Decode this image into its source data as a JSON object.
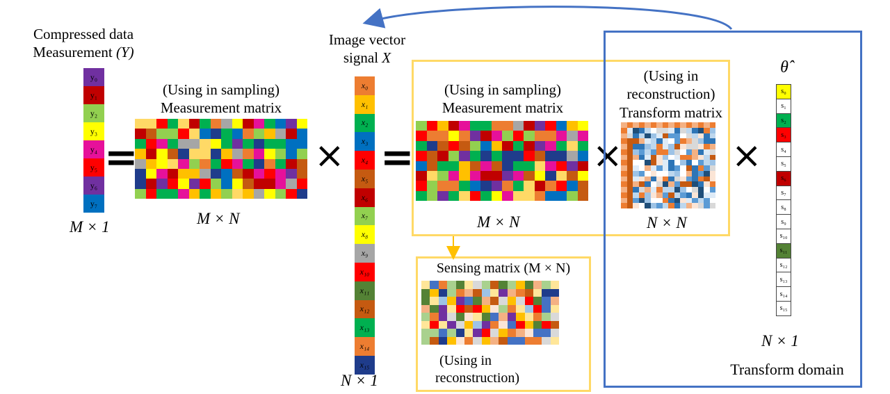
{
  "y_vector": {
    "title_line1": "Compressed data",
    "title_line2_prefix": "Measurement",
    "title_line2_math": "(Y)",
    "dim": "M × 1",
    "cells": [
      {
        "label": "y₀",
        "color": "#7030a0"
      },
      {
        "label": "y₁",
        "color": "#c00000"
      },
      {
        "label": "y₂",
        "color": "#92d050"
      },
      {
        "label": "y₃",
        "color": "#ffff00"
      },
      {
        "label": "y₄",
        "color": "#e6119a"
      },
      {
        "label": "y₅",
        "color": "#ff0000"
      },
      {
        "label": "y₆",
        "color": "#7030a0"
      },
      {
        "label": "y₇",
        "color": "#0070c0"
      }
    ]
  },
  "measurement_matrix_1": {
    "note": "(Using in sampling)",
    "title": "Measurement matrix",
    "dim": "M × N"
  },
  "x_vector": {
    "title_line1": "Image vector",
    "title_line2_prefix": "signal",
    "title_line2_math": "X",
    "dim": "N × 1",
    "cells": [
      {
        "label": "x₀",
        "color": "#ed7d31"
      },
      {
        "label": "x₁",
        "color": "#ffc000"
      },
      {
        "label": "x₂",
        "color": "#00b050"
      },
      {
        "label": "x₃",
        "color": "#0070c0"
      },
      {
        "label": "x₄",
        "color": "#ff0000"
      },
      {
        "label": "x₅",
        "color": "#c55a11"
      },
      {
        "label": "x₆",
        "color": "#c00000"
      },
      {
        "label": "x₇",
        "color": "#92d050"
      },
      {
        "label": "x₈",
        "color": "#ffff00"
      },
      {
        "label": "x₉",
        "color": "#a6a6a6"
      },
      {
        "label": "x₁₀",
        "color": "#ff0000"
      },
      {
        "label": "x₁₁",
        "color": "#548235"
      },
      {
        "label": "x₁₂",
        "color": "#c55a11"
      },
      {
        "label": "x₁₃",
        "color": "#00b050"
      },
      {
        "label": "x₁₄",
        "color": "#ed7d31"
      },
      {
        "label": "x₁₅",
        "color": "#1f3c8b"
      }
    ]
  },
  "measurement_matrix_2": {
    "note": "(Using in sampling)",
    "title": "Measurement matrix",
    "dim": "M × N"
  },
  "transform_matrix": {
    "note_line1": "(Using in",
    "note_line2": "reconstruction)",
    "title": "Transform matrix",
    "dim": "N × N"
  },
  "theta_vector": {
    "title": "θ̂",
    "dim": "N × 1",
    "domain_label": "Transform domain",
    "cells": [
      {
        "label": "s₀",
        "color": "#ffff00"
      },
      {
        "label": "s₁",
        "color": "#ffffff"
      },
      {
        "label": "s₂",
        "color": "#00b050"
      },
      {
        "label": "s₃",
        "color": "#ff0000"
      },
      {
        "label": "s₄",
        "color": "#ffffff"
      },
      {
        "label": "s₅",
        "color": "#ffffff"
      },
      {
        "label": "s₆",
        "color": "#c00000"
      },
      {
        "label": "s₇",
        "color": "#ffffff"
      },
      {
        "label": "s₈",
        "color": "#ffffff"
      },
      {
        "label": "s₉",
        "color": "#ffffff"
      },
      {
        "label": "s₁₀",
        "color": "#ffffff"
      },
      {
        "label": "s₁₁",
        "color": "#548235"
      },
      {
        "label": "s₁₂",
        "color": "#ffffff"
      },
      {
        "label": "s₁₃",
        "color": "#ffffff"
      },
      {
        "label": "s₁₄",
        "color": "#ffffff"
      },
      {
        "label": "s₁₅",
        "color": "#ffffff"
      }
    ]
  },
  "sensing_matrix": {
    "title": "Sensing matrix (M × N)",
    "note_line1": "(Using in",
    "note_line2": "reconstruction)"
  },
  "operators": {
    "equals": "=",
    "times": "×"
  },
  "colors": {
    "frame_yellow": "#ffd966",
    "frame_blue": "#4472c4",
    "arrow_blue": "#4472c4",
    "arrow_yellow": "#ffc000"
  },
  "palettes": {
    "measurement": [
      "#ff0000",
      "#c00000",
      "#0070c0",
      "#ffff00",
      "#92d050",
      "#00b050",
      "#7030a0",
      "#ed7d31",
      "#a6a6a6",
      "#ffc000",
      "#c55a11",
      "#1f3c8b",
      "#ffd966",
      "#e6119a"
    ],
    "sensing": [
      "#c55a11",
      "#ffc000",
      "#1f3c8b",
      "#9dc3e6",
      "#a9d18e",
      "#f4b183",
      "#7030a0",
      "#d9d9d9",
      "#ff0000",
      "#fbe5d6",
      "#4472c4",
      "#ffe699",
      "#548235",
      "#ed7d31"
    ],
    "transform": [
      "#ffffff",
      "#deebf7",
      "#bdd7ee",
      "#9dc3e6",
      "#5b9bd5",
      "#2e75b6",
      "#1f4e79",
      "#f4b183",
      "#ed7d31",
      "#c55a11",
      "#fbe5d6",
      "#d9d9d9"
    ]
  }
}
